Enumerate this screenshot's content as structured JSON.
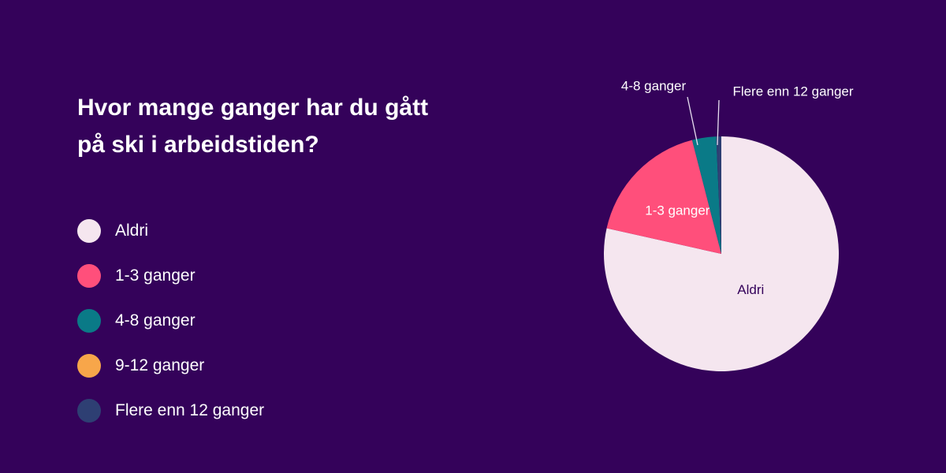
{
  "chart_data": {
    "type": "pie",
    "title_lines": [
      "Hvor mange ganger har du gått",
      "på ski i arbeidstiden?"
    ],
    "legend_placement": "left",
    "slices": [
      {
        "name": "Aldri",
        "value": 78.5,
        "color": "#f5e6ef",
        "label_color": "#34025a"
      },
      {
        "name": "1-3 ganger",
        "value": 17.5,
        "color": "#ff4f7b",
        "label_color": "#ffffff"
      },
      {
        "name": "4-8 ganger",
        "value": 3.3,
        "color": "#0a7a87",
        "label_color": "#ffffff"
      },
      {
        "name": "9-12 ganger",
        "value": 0,
        "color": "#f7a64a",
        "label_color": "#ffffff"
      },
      {
        "name": "Flere enn 12 ganger",
        "value": 0.7,
        "color": "#2e3f73",
        "label_color": "#ffffff"
      }
    ]
  }
}
